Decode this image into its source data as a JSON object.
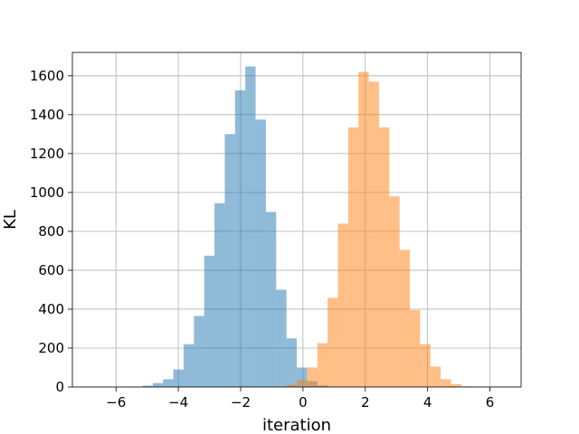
{
  "chart_data": {
    "type": "bar",
    "title": "",
    "xlabel": "iteration",
    "ylabel": "KL",
    "xlim": [
      -7.4,
      7.0
    ],
    "ylim": [
      0,
      1720
    ],
    "grid": true,
    "xticks": [
      -6,
      -4,
      -2,
      0,
      2,
      4,
      6
    ],
    "xtick_labels": [
      "−6",
      "−4",
      "−2",
      "0",
      "2",
      "4",
      "6"
    ],
    "yticks": [
      0,
      200,
      400,
      600,
      800,
      1000,
      1200,
      1400,
      1600
    ],
    "ytick_labels": [
      "0",
      "200",
      "400",
      "600",
      "800",
      "1000",
      "1200",
      "1400",
      "1600"
    ],
    "bin_width": 0.33,
    "series": [
      {
        "color": "#1f77b4",
        "opacity": 0.5,
        "bins": [
          {
            "x": -5.48,
            "value": 2
          },
          {
            "x": -5.15,
            "value": 7
          },
          {
            "x": -4.82,
            "value": 20
          },
          {
            "x": -4.49,
            "value": 40
          },
          {
            "x": -4.16,
            "value": 90
          },
          {
            "x": -3.83,
            "value": 220
          },
          {
            "x": -3.5,
            "value": 365
          },
          {
            "x": -3.17,
            "value": 675
          },
          {
            "x": -2.84,
            "value": 945
          },
          {
            "x": -2.51,
            "value": 1300
          },
          {
            "x": -2.18,
            "value": 1525
          },
          {
            "x": -1.85,
            "value": 1648
          },
          {
            "x": -1.52,
            "value": 1375
          },
          {
            "x": -1.19,
            "value": 900
          },
          {
            "x": -0.86,
            "value": 500
          },
          {
            "x": -0.53,
            "value": 250
          },
          {
            "x": -0.2,
            "value": 100
          },
          {
            "x": 0.13,
            "value": 30
          },
          {
            "x": 0.46,
            "value": 8
          },
          {
            "x": 0.79,
            "value": 2
          }
        ]
      },
      {
        "color": "#ff7f0e",
        "opacity": 0.5,
        "bins": [
          {
            "x": -0.86,
            "value": 2
          },
          {
            "x": -0.53,
            "value": 12
          },
          {
            "x": -0.2,
            "value": 35
          },
          {
            "x": 0.13,
            "value": 100
          },
          {
            "x": 0.46,
            "value": 225
          },
          {
            "x": 0.79,
            "value": 458
          },
          {
            "x": 1.12,
            "value": 840
          },
          {
            "x": 1.45,
            "value": 1335
          },
          {
            "x": 1.78,
            "value": 1620
          },
          {
            "x": 2.11,
            "value": 1570
          },
          {
            "x": 2.44,
            "value": 1335
          },
          {
            "x": 2.77,
            "value": 980
          },
          {
            "x": 3.1,
            "value": 705
          },
          {
            "x": 3.43,
            "value": 395
          },
          {
            "x": 3.76,
            "value": 220
          },
          {
            "x": 4.09,
            "value": 105
          },
          {
            "x": 4.42,
            "value": 40
          },
          {
            "x": 4.75,
            "value": 15
          },
          {
            "x": 5.08,
            "value": 3
          }
        ]
      }
    ]
  }
}
